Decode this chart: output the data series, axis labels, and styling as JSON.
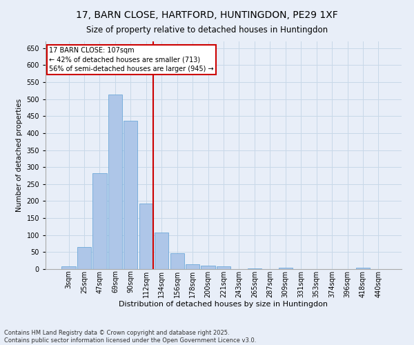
{
  "title_line1": "17, BARN CLOSE, HARTFORD, HUNTINGDON, PE29 1XF",
  "title_line2": "Size of property relative to detached houses in Huntingdon",
  "xlabel": "Distribution of detached houses by size in Huntingdon",
  "ylabel": "Number of detached properties",
  "footer_line1": "Contains HM Land Registry data © Crown copyright and database right 2025.",
  "footer_line2": "Contains public sector information licensed under the Open Government Licence v3.0.",
  "bin_labels": [
    "3sqm",
    "25sqm",
    "47sqm",
    "69sqm",
    "90sqm",
    "112sqm",
    "134sqm",
    "156sqm",
    "178sqm",
    "200sqm",
    "221sqm",
    "243sqm",
    "265sqm",
    "287sqm",
    "309sqm",
    "331sqm",
    "353sqm",
    "374sqm",
    "396sqm",
    "418sqm",
    "440sqm"
  ],
  "bar_values": [
    8,
    65,
    283,
    513,
    437,
    193,
    107,
    46,
    15,
    10,
    9,
    1,
    3,
    0,
    4,
    0,
    1,
    0,
    0,
    4,
    0
  ],
  "bar_color": "#aec6e8",
  "bar_edge_color": "#5a9fd4",
  "grid_color": "#c8d8e8",
  "vline_x": 5.45,
  "vline_color": "#cc0000",
  "annotation_text": "17 BARN CLOSE: 107sqm\n← 42% of detached houses are smaller (713)\n56% of semi-detached houses are larger (945) →",
  "annotation_box_color": "#ffffff",
  "annotation_box_edge": "#cc0000",
  "ylim": [
    0,
    670
  ],
  "yticks": [
    0,
    50,
    100,
    150,
    200,
    250,
    300,
    350,
    400,
    450,
    500,
    550,
    600,
    650
  ],
  "background_color": "#e8eef8",
  "title1_fontsize": 10,
  "title2_fontsize": 8.5,
  "xlabel_fontsize": 8,
  "ylabel_fontsize": 7.5,
  "tick_fontsize": 7,
  "annotation_fontsize": 7,
  "footer_fontsize": 6
}
